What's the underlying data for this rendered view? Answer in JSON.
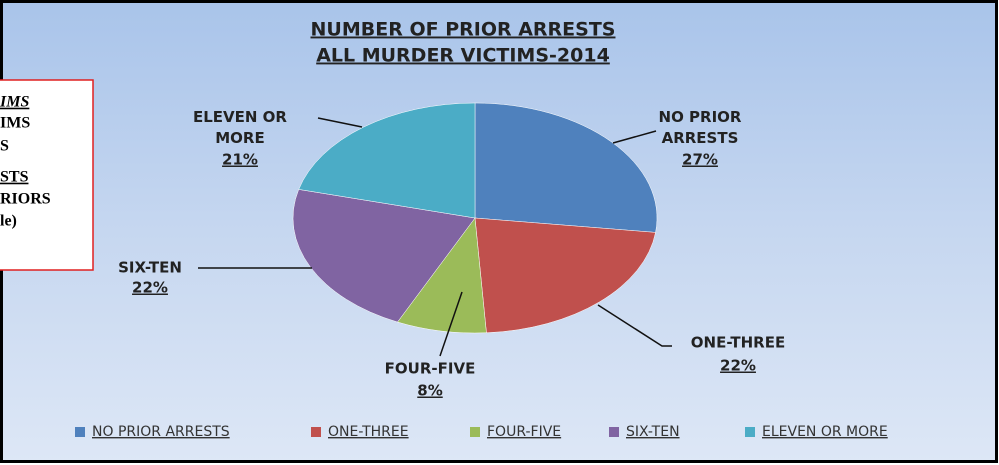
{
  "chart_data": {
    "type": "pie",
    "title_lines": [
      "NUMBER OF PRIOR ARRESTS",
      "ALL MURDER VICTIMS-2014"
    ],
    "categories": [
      "NO PRIOR ARRESTS",
      "ONE-THREE",
      "FOUR-FIVE",
      "SIX-TEN",
      "ELEVEN OR MORE"
    ],
    "values": [
      27,
      22,
      8,
      22,
      21
    ],
    "value_labels": [
      "27%",
      "22%",
      "8%",
      "22%",
      "21%"
    ],
    "colors": [
      "#4f81bd",
      "#c0504d",
      "#9bbb59",
      "#8064a2",
      "#4bacc6"
    ],
    "legend": "bottom"
  },
  "note_box": {
    "lines": [
      "IMS",
      "IMS",
      "S",
      "STS",
      "RIORS",
      "le)"
    ]
  }
}
